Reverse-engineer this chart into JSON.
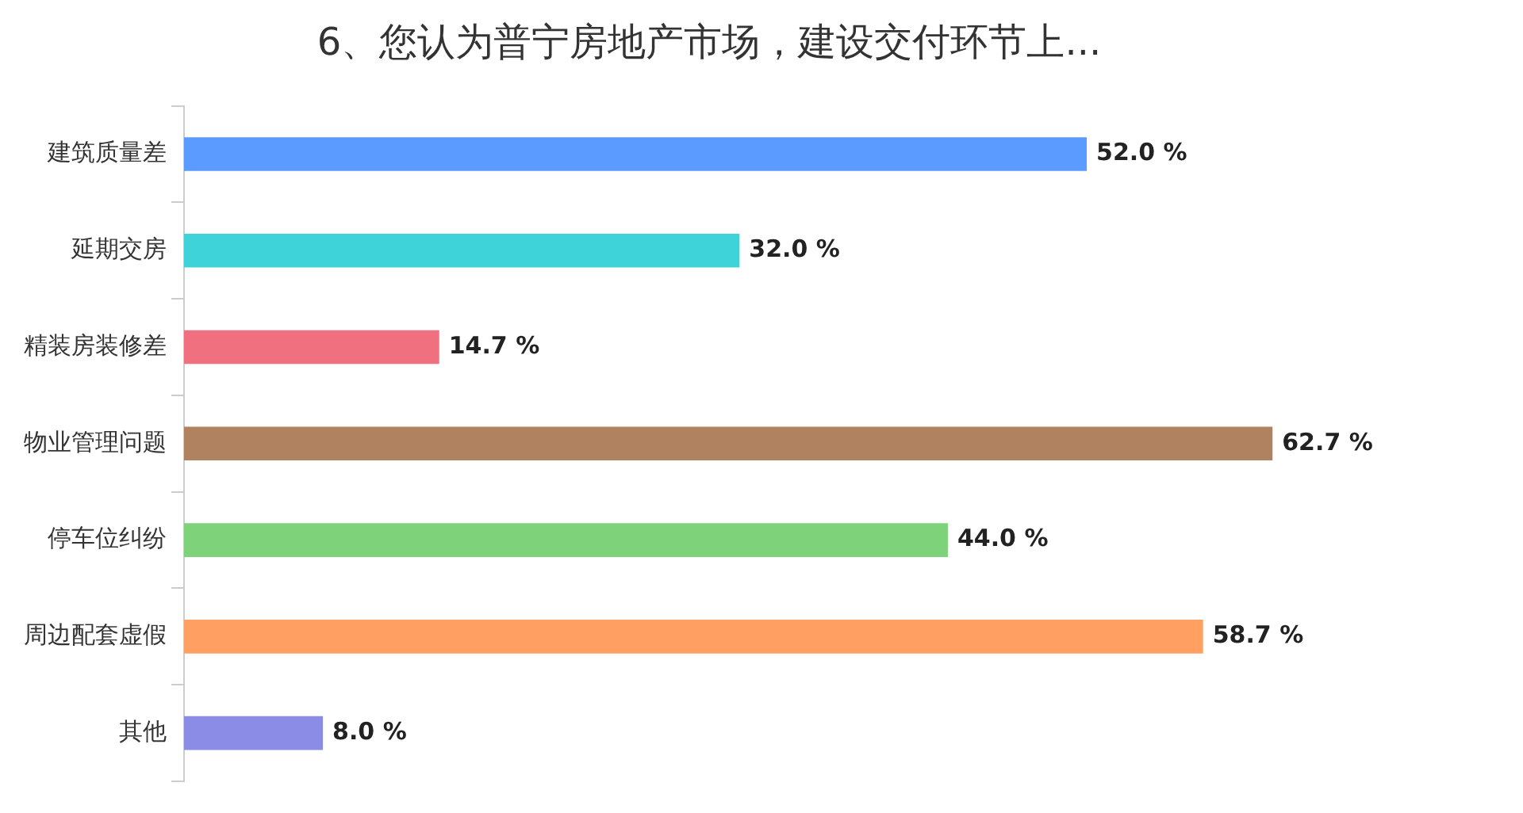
{
  "chart_data": {
    "type": "bar",
    "orientation": "horizontal",
    "title": "6、您认为普宁房地产市场，建设交付环节上...",
    "categories": [
      "建筑质量差",
      "延期交房",
      "精装房装修差",
      "物业管理问题",
      "停车位纠纷",
      "周边配套虚假",
      "其他"
    ],
    "values": [
      52.0,
      32.0,
      14.7,
      62.7,
      44.0,
      58.7,
      8.0
    ],
    "colors": [
      "#5b9bff",
      "#3ed3d8",
      "#f07080",
      "#b0825f",
      "#7ed37a",
      "#ffa062",
      "#8a8ce6"
    ],
    "value_labels": [
      "52.0 %",
      "32.0 %",
      "14.7 %",
      "62.7 %",
      "44.0 %",
      "58.7 %",
      "8.0 %"
    ],
    "grid": false,
    "legend": false
  }
}
